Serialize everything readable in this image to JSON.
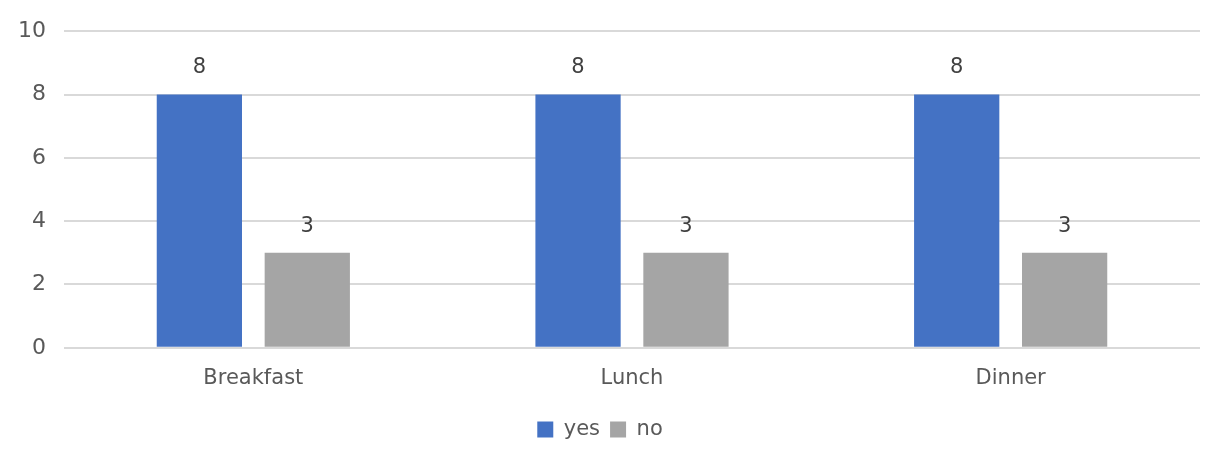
{
  "chart_data": {
    "type": "bar",
    "categories": [
      "Breakfast",
      "Lunch",
      "Dinner"
    ],
    "series": [
      {
        "name": "yes",
        "color": "#4472c4",
        "values": [
          8,
          8,
          8
        ]
      },
      {
        "name": "no",
        "color": "#a5a5a5",
        "values": [
          3,
          3,
          3
        ]
      }
    ],
    "ylim": [
      0,
      10
    ],
    "yticks": [
      0,
      2,
      4,
      6,
      8,
      10
    ],
    "grid": "y",
    "legend": "bottom",
    "data_labels": true
  }
}
